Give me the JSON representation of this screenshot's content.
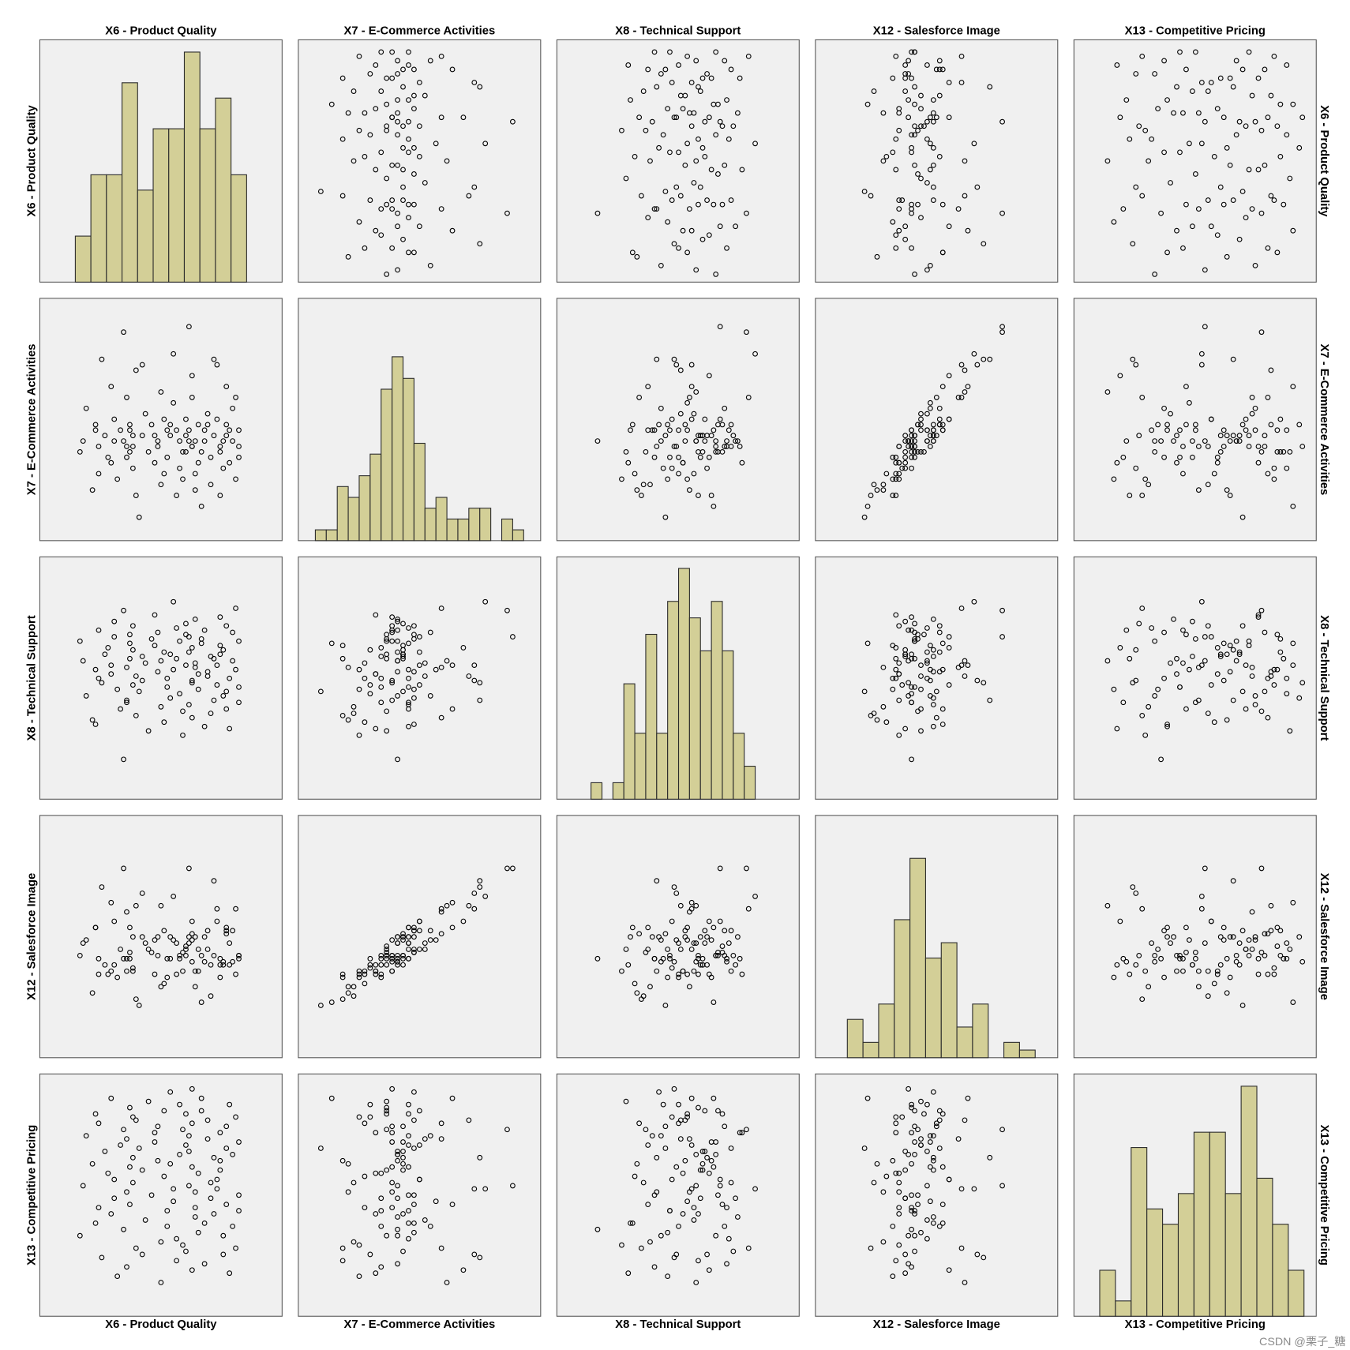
{
  "chart_data": {
    "type": "scatter_matrix",
    "point_color": "#000000",
    "panel_color": "#f0f0f0",
    "bar_color": "#d3cf97",
    "variables": [
      {
        "name": "X6 - Product Quality",
        "xlim": [
          3.61,
          11.39
        ],
        "ylim": [
          4.72,
          10.28
        ],
        "values": [
          5.0,
          5.1,
          4.9,
          5.3,
          5.4,
          5.5,
          5.6,
          5.7,
          5.5,
          5.4,
          5.8,
          5.9,
          6.0,
          6.1,
          6.2,
          6.0,
          5.9,
          6.3,
          6.4,
          6.5,
          6.6,
          6.7,
          6.4,
          6.5,
          6.6,
          6.3,
          6.5,
          6.7,
          6.4,
          6.6,
          6.8,
          6.9,
          7.0,
          7.1,
          7.2,
          6.9,
          7.3,
          7.4,
          7.5,
          7.6,
          7.7,
          7.4,
          7.5,
          7.6,
          7.3,
          7.7,
          7.8,
          7.9,
          8.0,
          8.1,
          8.2,
          7.9,
          8.0,
          8.1,
          7.8,
          8.2,
          8.3,
          8.4,
          8.5,
          8.6,
          8.7,
          8.4,
          8.5,
          8.6,
          8.3,
          8.7,
          8.4,
          8.5,
          8.6,
          8.3,
          8.5,
          8.8,
          8.9,
          9.0,
          9.1,
          9.2,
          8.9,
          9.0,
          9.1,
          8.8,
          9.2,
          9.3,
          9.4,
          9.5,
          9.6,
          9.7,
          9.4,
          9.5,
          9.6,
          9.3,
          9.7,
          9.4,
          9.6,
          9.8,
          9.9,
          10.0,
          10.0,
          9.9,
          9.8,
          10.0
        ],
        "histogram": {
          "bins": [
            4.75,
            5.25,
            5.75,
            6.25,
            6.75,
            7.25,
            7.75,
            8.25,
            8.75,
            9.25,
            9.75,
            10.25
          ],
          "counts": [
            3,
            7,
            7,
            13,
            6,
            10,
            10,
            15,
            10,
            12,
            7
          ],
          "ylim": [
            0,
            15.8
          ]
        }
      },
      {
        "name": "X7 - E-Commerce Activities",
        "xlim": [
          1.79,
          6.21
        ],
        "ylim": [
          1.77,
          6.22
        ],
        "values": [
          3.6,
          4.2,
          3.4,
          2.7,
          3.8,
          3.5,
          5.1,
          3.7,
          3.0,
          3.9,
          3.3,
          4.6,
          3.6,
          2.9,
          3.8,
          4.0,
          3.2,
          5.6,
          3.5,
          3.4,
          3.7,
          2.6,
          4.4,
          3.9,
          3.1,
          3.6,
          3.8,
          4.9,
          3.3,
          3.5,
          2.2,
          3.7,
          4.1,
          3.4,
          3.9,
          5.0,
          3.2,
          3.6,
          2.8,
          4.0,
          3.8,
          3.5,
          4.5,
          3.0,
          3.7,
          3.3,
          3.9,
          5.2,
          2.6,
          3.6,
          3.4,
          4.3,
          3.8,
          3.1,
          3.7,
          2.9,
          4.0,
          5.7,
          3.5,
          3.6,
          3.2,
          3.8,
          4.8,
          2.7,
          3.4,
          3.9,
          3.6,
          4.4,
          3.0,
          3.7,
          3.5,
          2.4,
          3.8,
          4.1,
          3.3,
          5.1,
          3.6,
          3.9,
          2.8,
          3.4,
          3.7,
          4.0,
          3.5,
          3.1,
          4.6,
          3.8,
          2.6,
          3.6,
          3.9,
          5.0,
          3.2,
          3.4,
          3.7,
          4.2,
          2.9,
          3.8,
          3.5,
          4.4,
          3.6,
          3.3
        ],
        "histogram": {
          "bins": [
            2.1,
            2.3,
            2.5,
            2.7,
            2.9,
            3.1,
            3.3,
            3.5,
            3.7,
            3.9,
            4.1,
            4.3,
            4.5,
            4.7,
            4.9,
            5.1,
            5.3,
            5.5,
            5.7,
            5.9
          ],
          "counts": [
            1,
            1,
            5,
            4,
            6,
            8,
            14,
            17,
            15,
            9,
            3,
            4,
            2,
            2,
            3,
            3,
            0,
            2,
            1
          ],
          "ylim": [
            0,
            22.4
          ]
        }
      },
      {
        "name": "X8 - Technical Support",
        "xlim": [
          -0.56,
          10.51
        ],
        "ylim": [
          -0.52,
          10.55
        ],
        "values": [
          5.8,
          4.2,
          6.7,
          3.1,
          5.4,
          7.2,
          4.8,
          6.1,
          5.0,
          2.9,
          6.4,
          5.6,
          7.6,
          4.5,
          3.6,
          6.9,
          5.2,
          8.1,
          4.0,
          5.9,
          6.3,
          3.3,
          5.5,
          7.0,
          4.7,
          1.3,
          6.6,
          5.1,
          3.9,
          7.4,
          4.4,
          6.0,
          5.7,
          2.6,
          6.8,
          4.9,
          7.9,
          5.3,
          3.7,
          6.2,
          4.6,
          7.1,
          5.8,
          3.0,
          6.5,
          5.0,
          4.1,
          8.5,
          5.9,
          6.7,
          3.5,
          5.4,
          7.3,
          4.3,
          6.1,
          2.4,
          5.6,
          6.9,
          4.8,
          7.7,
          5.2,
          3.8,
          6.4,
          5.5,
          7.0,
          4.5,
          6.2,
          3.2,
          5.7,
          7.5,
          4.9,
          6.6,
          2.8,
          5.1,
          6.0,
          4.0,
          7.2,
          5.3,
          3.4,
          6.8,
          5.9,
          4.7,
          7.8,
          6.3,
          3.6,
          5.0,
          6.5,
          4.2,
          7.4,
          5.6,
          2.7,
          6.1,
          4.4,
          7.1,
          5.4,
          3.9,
          6.7,
          8.2,
          5.8,
          4.6
        ],
        "histogram": {
          "bins": [
            1.0,
            1.5,
            2.0,
            2.5,
            3.0,
            3.5,
            4.0,
            4.5,
            5.0,
            5.5,
            6.0,
            6.5,
            7.0,
            7.5,
            8.0,
            8.5
          ],
          "counts": [
            1,
            0,
            1,
            7,
            4,
            10,
            4,
            12,
            14,
            11,
            9,
            12,
            9,
            4,
            2
          ],
          "ylim": [
            0,
            14.7
          ]
        }
      },
      {
        "name": "X12 - Salesforce Image",
        "xlim": [
          1.73,
          9.47
        ],
        "ylim": [
          1.62,
          9.4
        ],
        "values": [
          5.3,
          5.4,
          4.9,
          3.7,
          5.8,
          4.8,
          7.1,
          4.6,
          4.3,
          5.8,
          4.3,
          6.6,
          4.6,
          4.2,
          5.1,
          6.0,
          4.4,
          7.7,
          4.4,
          4.8,
          5.5,
          3.5,
          6.3,
          5.0,
          4.5,
          4.8,
          5.8,
          6.5,
          4.8,
          4.4,
          3.3,
          5.5,
          5.3,
          5.1,
          5.0,
          6.9,
          4.3,
          5.5,
          3.9,
          5.7,
          4.8,
          4.9,
          6.5,
          4.0,
          5.4,
          4.2,
          5.5,
          6.8,
          4.3,
          4.9,
          5.0,
          5.4,
          5.3,
          4.8,
          4.8,
          4.4,
          5.1,
          7.7,
          4.7,
          5.5,
          4.4,
          5.5,
          6.0,
          3.9,
          5.2,
          5.1,
          5.3,
          5.6,
          4.4,
          4.9,
          5.4,
          3.4,
          5.5,
          5.1,
          4.6,
          7.3,
          4.7,
          5.7,
          3.6,
          4.9,
          4.9,
          6.0,
          4.8,
          4.6,
          5.8,
          5.3,
          4.2,
          4.7,
          5.7,
          6.4,
          4.6,
          4.6,
          5.6,
          5.7,
          4.3,
          4.8,
          4.9,
          6.4,
          4.7,
          4.9
        ],
        "histogram": {
          "bins": [
            2.75,
            3.25,
            3.75,
            4.25,
            4.75,
            5.25,
            5.75,
            6.25,
            6.75,
            7.25,
            7.75,
            8.25,
            8.75
          ],
          "counts": [
            5,
            2,
            7,
            18,
            26,
            13,
            15,
            4,
            7,
            0,
            2,
            1
          ],
          "ylim": [
            0,
            31.6
          ]
        }
      },
      {
        "name": "X13 - Competitive Pricing",
        "xlim": [
          2.63,
          10.34
        ],
        "ylim": [
          2.62,
          10.38
        ],
        "values": [
          6.8,
          8.4,
          5.2,
          7.5,
          9.1,
          6.1,
          4.5,
          7.9,
          8.8,
          5.6,
          7.2,
          9.6,
          6.4,
          3.9,
          8.1,
          7.0,
          5.9,
          8.6,
          6.6,
          9.3,
          7.7,
          4.8,
          8.3,
          6.2,
          9.0,
          5.4,
          7.4,
          8.9,
          4.2,
          6.9,
          8.0,
          7.3,
          5.7,
          9.5,
          6.5,
          4.6,
          8.5,
          7.6,
          5.0,
          9.2,
          6.0,
          8.7,
          3.7,
          7.1,
          8.2,
          5.5,
          9.8,
          6.7,
          4.4,
          7.8,
          8.6,
          6.3,
          5.1,
          9.4,
          7.5,
          4.9,
          8.1,
          6.8,
          9.9,
          5.8,
          7.2,
          8.4,
          4.1,
          6.6,
          9.1,
          5.3,
          7.9,
          8.8,
          6.1,
          4.7,
          7.4,
          9.6,
          5.6,
          8.3,
          6.4,
          7.7,
          4.3,
          8.9,
          6.9,
          9.2,
          5.9,
          7.0,
          8.5,
          4.6,
          6.2,
          9.4,
          7.6,
          5.2,
          8.0,
          6.7,
          4.0,
          7.3,
          8.7,
          5.5,
          9.0,
          6.5,
          8.2,
          4.8,
          7.8,
          6.0
        ],
        "histogram": {
          "bins": [
            3.45,
            3.95,
            4.45,
            4.95,
            5.45,
            5.95,
            6.45,
            6.95,
            7.45,
            7.95,
            8.45,
            8.95,
            9.45,
            9.95
          ],
          "counts": [
            3,
            1,
            11,
            7,
            6,
            8,
            12,
            12,
            8,
            15,
            9,
            6,
            3
          ],
          "ylim": [
            0,
            15.8
          ]
        }
      }
    ]
  },
  "watermark": "CSDN @栗子_糖"
}
